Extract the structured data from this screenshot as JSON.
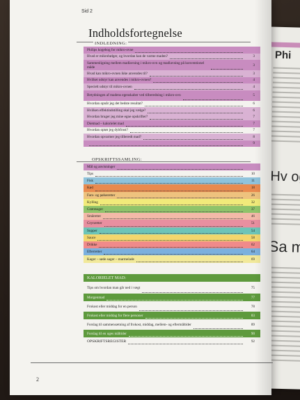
{
  "header": {
    "page_label": "Sid 2",
    "title": "Indholdsfortegnelse"
  },
  "sections": {
    "intro": "INDLEDNING:",
    "recipes": "OPSKRIFTSSAMLING:",
    "calorie": "KALORIELET MAD:"
  },
  "intro_entries": [
    {
      "text": "Philips kogebog for mikro-ovne",
      "page": "",
      "color": "#c88cc0"
    },
    {
      "text": "Hvad er mikrobølger, og hvordan kan de varme maden?",
      "page": "3",
      "color": "#d9b2d3"
    },
    {
      "text": "Sammenligning mellem madlavning i mikro-ovn og madlavning på konventionel måde",
      "page": "3",
      "color": "#c88cc0",
      "two": true
    },
    {
      "text": "Hvad kan mikro-ovnen ikke anvendes til?",
      "page": "3",
      "color": "#d9b2d3"
    },
    {
      "text": "Hvilket udstyr kan anvendes i mikro-ovnen?",
      "page": "4",
      "color": "#c88cc0"
    },
    {
      "text": "Specielt udstyr til mikro-ovnen",
      "page": "4",
      "color": "#d9b2d3"
    },
    {
      "text": "Betydningen af madens egenskaber ved tilberedning i mikro-ovn",
      "page": "5",
      "color": "#c88cc0",
      "two": true
    },
    {
      "text": "Hvordan opnår jeg det bedste resultat?",
      "page": "6",
      "color": "#f4f3ef"
    },
    {
      "text": "Hvilken effektindstilling skal jeg vælge?",
      "page": "6",
      "color": "#d9b2d3"
    },
    {
      "text": "Hvordan bruger jeg mine egne opskrifter?",
      "page": "7",
      "color": "#d9b2d3"
    },
    {
      "text": "Dietmad – kalorielet mad",
      "page": "7",
      "color": "#c88cc0"
    },
    {
      "text": "Hvordan optør jeg dybfrost?",
      "page": "7",
      "color": "#f4f3ef"
    },
    {
      "text": "Hvordan opvarmer jeg tilberedt mad?",
      "page": "8",
      "color": "#d9b2d3"
    },
    {
      "text": "",
      "page": "9",
      "color": "#c88cc0"
    }
  ],
  "recipe_entries": [
    {
      "text": "Mål og anvisninger",
      "page": "",
      "color": "#c88cc0"
    },
    {
      "text": "Tips",
      "page": "10",
      "color": "#f4f3ef"
    },
    {
      "text": "Fisk",
      "page": "11",
      "color": "#8fc3dc"
    },
    {
      "text": "Kød",
      "page": "18",
      "color": "#e98a4e"
    },
    {
      "text": "Fars- og pølseretter",
      "page": "26",
      "color": "#eec27e"
    },
    {
      "text": "Kylling",
      "page": "32",
      "color": "#f1ea7a"
    },
    {
      "text": "Grøntsager",
      "page": "37",
      "color": "#8fc36a"
    },
    {
      "text": "Småretter",
      "page": "46",
      "color": "#f3b9a8"
    },
    {
      "text": "Grynretter",
      "page": "51",
      "color": "#e88fa0"
    },
    {
      "text": "Supper",
      "page": "54",
      "color": "#6cc4b8"
    },
    {
      "text": "Sauce",
      "page": "58",
      "color": "#f2d66d"
    },
    {
      "text": "Drikke",
      "page": "62",
      "color": "#f08a8a"
    },
    {
      "text": "Efterretter",
      "page": "64",
      "color": "#7bb0de"
    },
    {
      "text": "Kager – søde sager – marmelade",
      "page": "69",
      "color": "#f2e99a"
    }
  ],
  "calorie_entries": [
    {
      "text": "Tips om hvordan man går ned i vægt",
      "page": "75",
      "color": "#f4f3ef"
    },
    {
      "text": "Morgenmad",
      "page": "77",
      "color": "#5e9a3d"
    },
    {
      "text": "Frokost eller middag for en person",
      "page": "78",
      "color": "#f4f3ef"
    },
    {
      "text": "Frokost eller middag for flere personer",
      "page": "83",
      "color": "#5e9a3d"
    },
    {
      "text": "Forslag til sammensætning af frokost, middag, mellem- og eftermåltider",
      "page": "89",
      "color": "#f4f3ef"
    },
    {
      "text": "Forslag til en uges måltider",
      "page": "90",
      "color": "#5e9a3d"
    }
  ],
  "register": {
    "text": "OPSKRIFTSREGISTER",
    "page": "92"
  },
  "right_page": {
    "title": "Phi",
    "heading_a": "Hv og",
    "heading_b": "Sa m"
  },
  "footer": {
    "page_number": "2"
  }
}
